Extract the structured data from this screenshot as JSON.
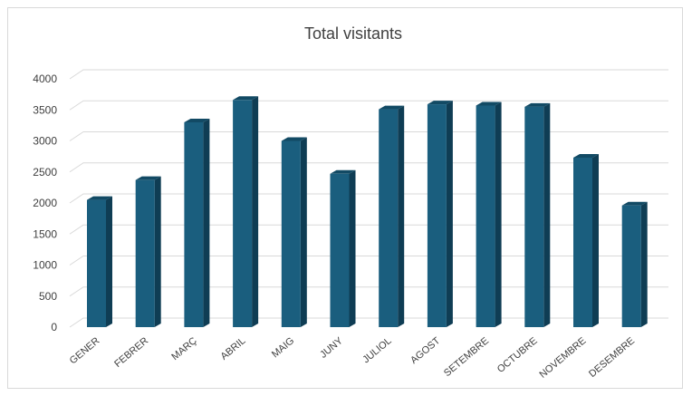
{
  "chart_data": {
    "type": "bar",
    "title": "Total visitants",
    "xlabel": "",
    "ylabel": "",
    "categories": [
      "GENER",
      "FEBRER",
      "MARÇ",
      "ABRIL",
      "MAIG",
      "JUNY",
      "JULIOL",
      "AGOST",
      "SETEMBRE",
      "OCTUBRE",
      "NOVEMBRE",
      "DESEMBRE"
    ],
    "values": [
      2050,
      2370,
      3300,
      3660,
      3000,
      2470,
      3510,
      3590,
      3570,
      3550,
      2730,
      1960
    ],
    "ylim": [
      0,
      4000
    ],
    "yticks": [
      0,
      500,
      1000,
      1500,
      2000,
      2500,
      3000,
      3500,
      4000
    ],
    "grid": true,
    "legend": "none",
    "style": "3d-column",
    "colors": {
      "bar_front": "#1a5e7e",
      "bar_side": "#0f3d54",
      "bar_top": "#124a64",
      "grid": "#d9d9d9",
      "text": "#404040"
    }
  }
}
